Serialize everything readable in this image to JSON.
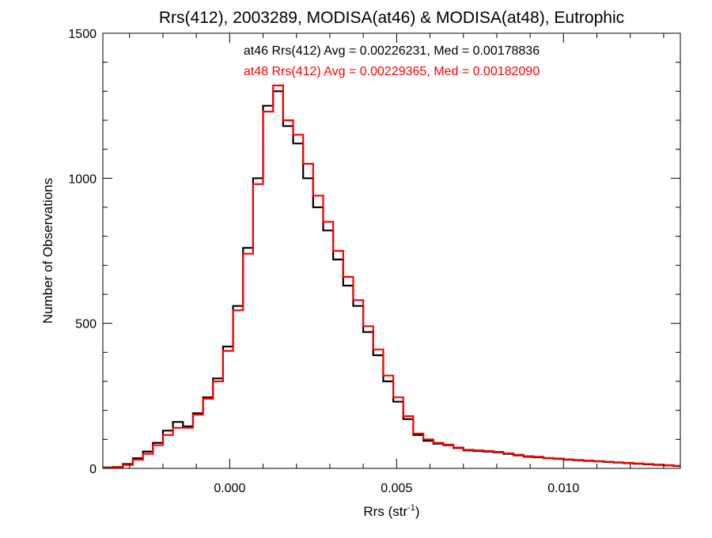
{
  "chart_data": {
    "type": "line",
    "title": "Rrs(412), 2003289, MODISA(at46) & MODISA(at48), Eutrophic",
    "xlabel_main": "Rrs (str",
    "xlabel_sup": "-1",
    "xlabel_close": ")",
    "ylabel": "Number of Observations",
    "xlim": [
      -0.0038,
      0.0135
    ],
    "ylim": [
      0,
      1500
    ],
    "grid": false,
    "xtick_values": [
      0.0,
      0.005,
      0.01
    ],
    "xtick_labels": [
      "0.000",
      "0.005",
      "0.010"
    ],
    "ytick_values": [
      0,
      500,
      1000,
      1500
    ],
    "ytick_labels": [
      "0",
      "500",
      "1000",
      "1500"
    ],
    "annotations": [
      {
        "text": "at46 Rrs(412) Avg = 0.00226231, Med = 0.00178836",
        "color": "#000000"
      },
      {
        "text": "at48 Rrs(412) Avg = 0.00229365, Med = 0.00182090",
        "color": "#ff0000"
      }
    ],
    "series": [
      {
        "color": "#000000",
        "x": [
          -0.0038,
          -0.0035,
          -0.0032,
          -0.0029,
          -0.0026,
          -0.0023,
          -0.002,
          -0.0017,
          -0.0014,
          -0.0011,
          -0.0008,
          -0.0005,
          -0.0002,
          0.0001,
          0.0004,
          0.0007,
          0.001,
          0.0013,
          0.0016,
          0.0019,
          0.0022,
          0.0025,
          0.0028,
          0.0031,
          0.0034,
          0.0037,
          0.004,
          0.0043,
          0.0046,
          0.0049,
          0.0052,
          0.0055,
          0.0058,
          0.0061,
          0.0064,
          0.0067,
          0.007,
          0.0073,
          0.0076,
          0.0079,
          0.0082,
          0.0085,
          0.0088,
          0.0091,
          0.0094,
          0.0097,
          0.01,
          0.0103,
          0.0106,
          0.0109,
          0.0112,
          0.0115,
          0.0118,
          0.0121,
          0.0124,
          0.0127,
          0.013,
          0.0133
        ],
        "values": [
          3,
          5,
          15,
          35,
          58,
          88,
          130,
          160,
          145,
          190,
          245,
          310,
          420,
          560,
          760,
          1000,
          1250,
          1300,
          1180,
          1120,
          1000,
          900,
          820,
          720,
          630,
          560,
          470,
          390,
          300,
          230,
          170,
          115,
          95,
          85,
          80,
          70,
          62,
          60,
          58,
          55,
          50,
          45,
          40,
          38,
          35,
          33,
          30,
          28,
          26,
          24,
          22,
          20,
          18,
          16,
          14,
          12,
          10,
          8
        ]
      },
      {
        "color": "#ff0000",
        "x": [
          -0.0038,
          -0.0035,
          -0.0032,
          -0.0029,
          -0.0026,
          -0.0023,
          -0.002,
          -0.0017,
          -0.0014,
          -0.0011,
          -0.0008,
          -0.0005,
          -0.0002,
          0.0001,
          0.0004,
          0.0007,
          0.001,
          0.0013,
          0.0016,
          0.0019,
          0.0022,
          0.0025,
          0.0028,
          0.0031,
          0.0034,
          0.0037,
          0.004,
          0.0043,
          0.0046,
          0.0049,
          0.0052,
          0.0055,
          0.0058,
          0.0061,
          0.0064,
          0.0067,
          0.007,
          0.0073,
          0.0076,
          0.0079,
          0.0082,
          0.0085,
          0.0088,
          0.0091,
          0.0094,
          0.0097,
          0.01,
          0.0103,
          0.0106,
          0.0109,
          0.0112,
          0.0115,
          0.0118,
          0.0121,
          0.0124,
          0.0127,
          0.013,
          0.0133
        ],
        "values": [
          2,
          4,
          12,
          30,
          50,
          80,
          115,
          140,
          140,
          185,
          240,
          300,
          405,
          545,
          740,
          980,
          1230,
          1320,
          1200,
          1150,
          1050,
          940,
          850,
          750,
          660,
          580,
          490,
          410,
          320,
          245,
          180,
          120,
          100,
          88,
          82,
          72,
          64,
          62,
          60,
          57,
          52,
          47,
          42,
          40,
          36,
          34,
          31,
          29,
          27,
          25,
          23,
          21,
          19,
          17,
          15,
          13,
          11,
          9
        ]
      }
    ]
  }
}
